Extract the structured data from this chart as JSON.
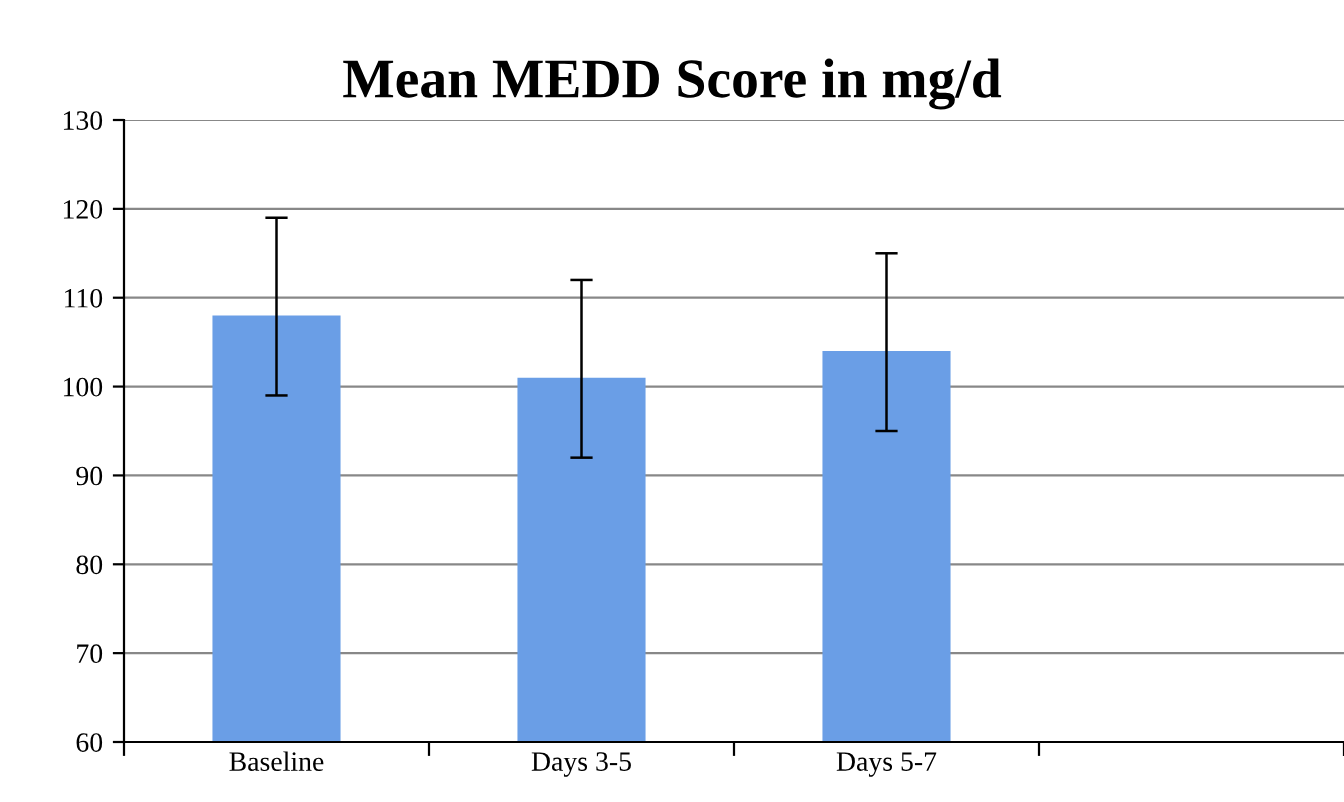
{
  "chart_data": {
    "type": "bar",
    "title": "Mean MEDD Score in mg/d",
    "categories": [
      "Baseline",
      "Days 3-5",
      "Days 5-7",
      null
    ],
    "values": [
      108,
      101,
      104,
      null
    ],
    "errors": [
      [
        99,
        119
      ],
      [
        92,
        112
      ],
      [
        95,
        115
      ],
      null
    ],
    "color": "#6a9ee6",
    "ylim": [
      60,
      130
    ],
    "yticks": [
      60,
      70,
      80,
      90,
      100,
      110,
      120,
      130
    ],
    "grid": "y"
  }
}
